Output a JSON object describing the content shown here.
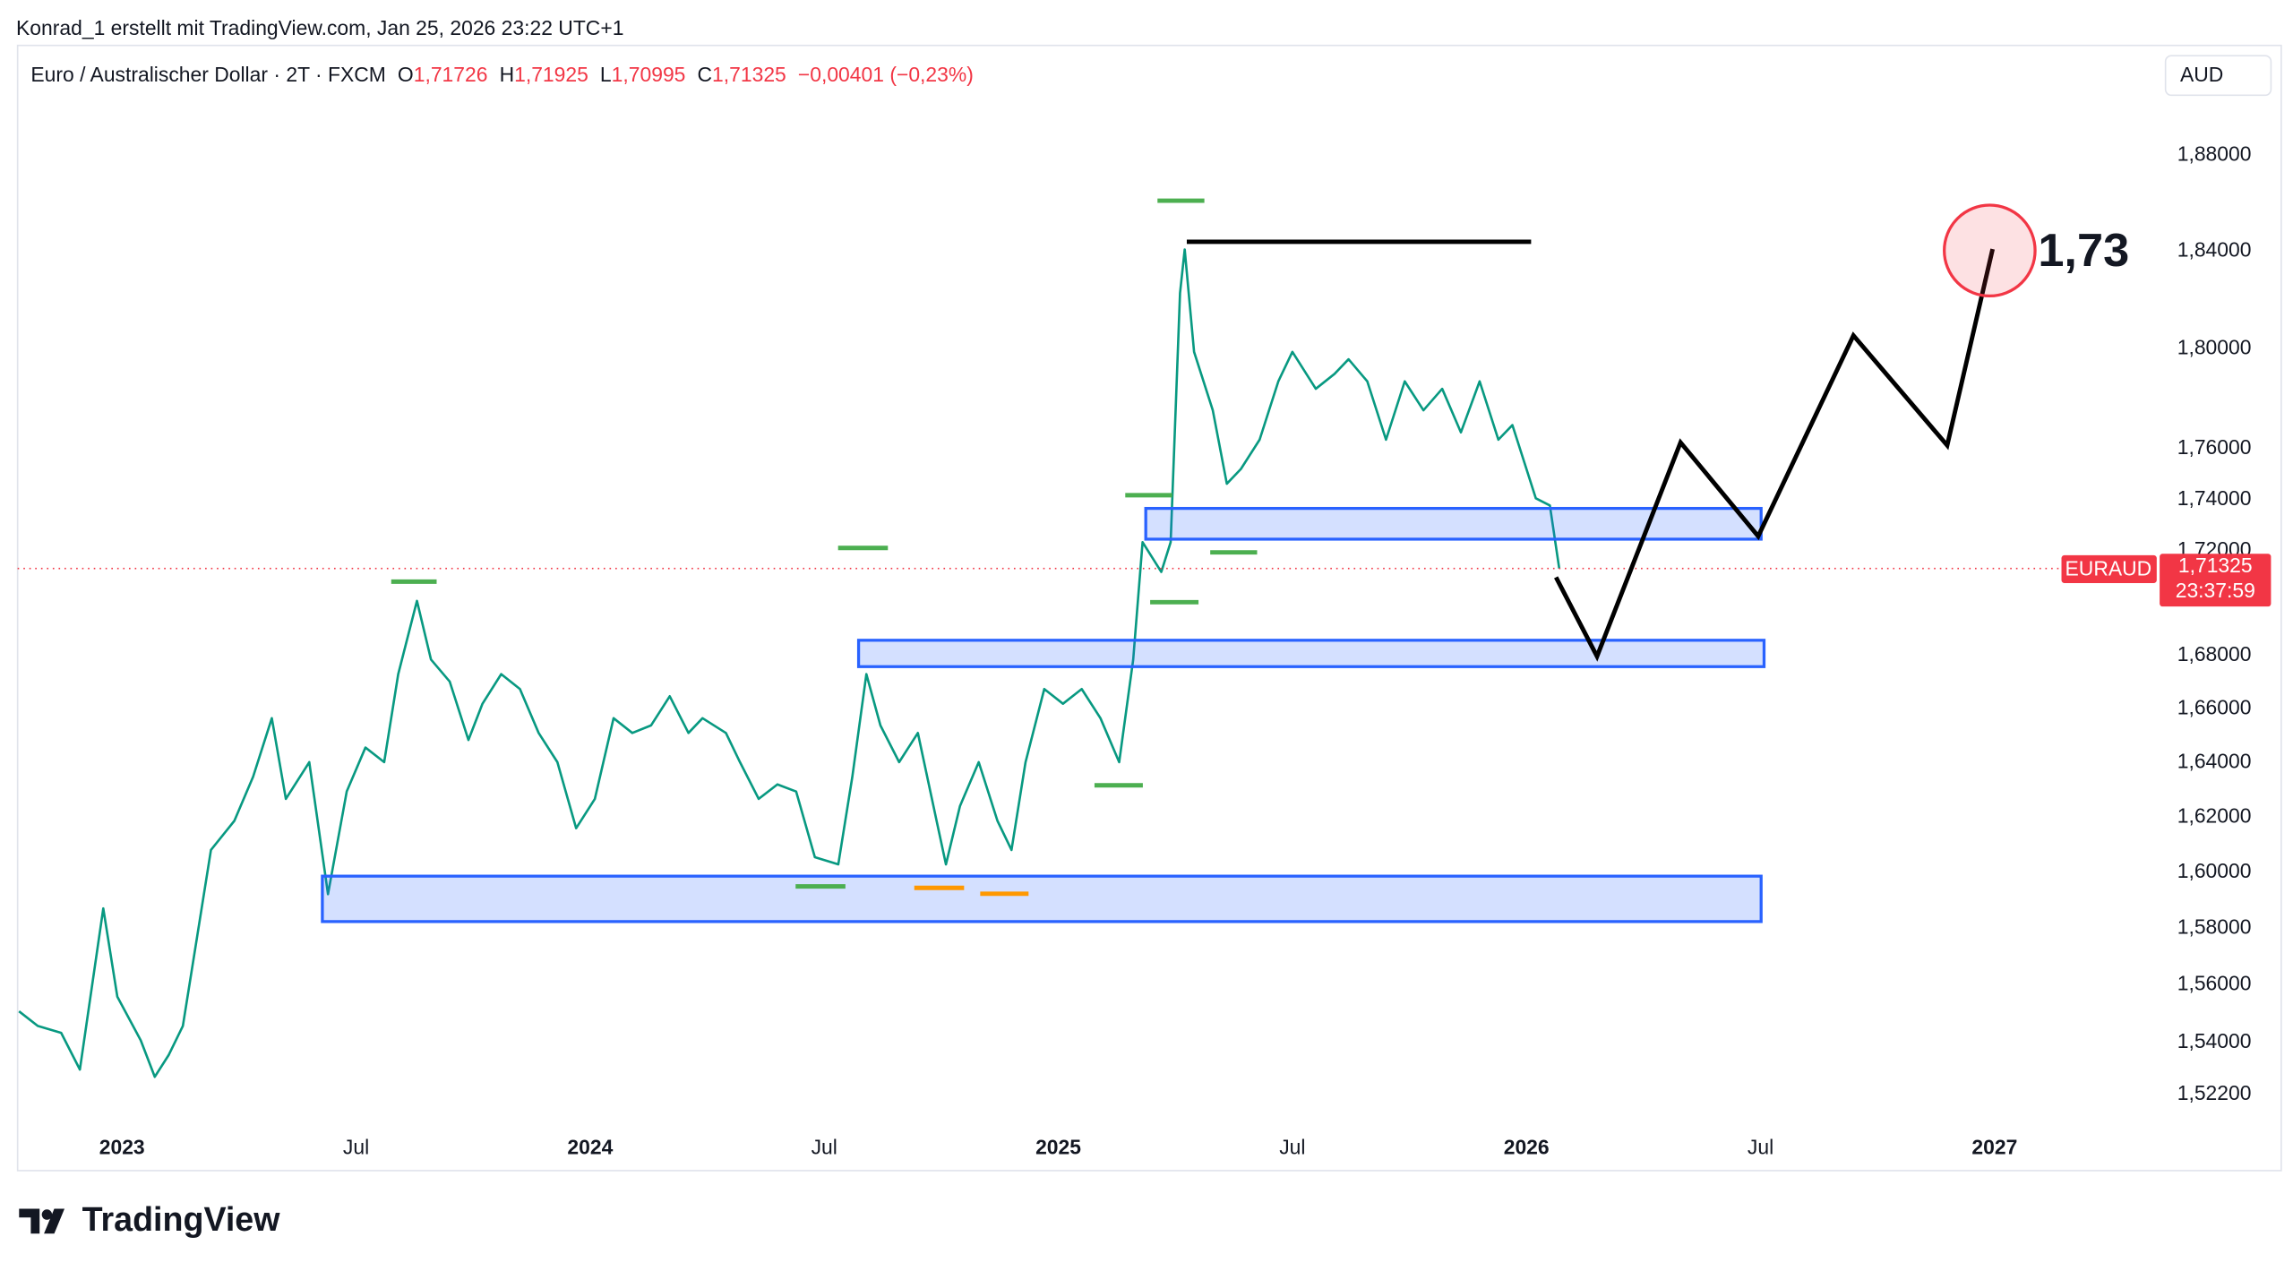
{
  "header": {
    "author_line": "Konrad_1 erstellt mit TradingView.com, Jan 25, 2026 23:22 UTC+1"
  },
  "chart_data": {
    "type": "line",
    "legend": {
      "symbol": "Euro / Australischer Dollar · 2T · FXCM",
      "ohlc": [
        {
          "key": "O",
          "value": "1,71726"
        },
        {
          "key": "H",
          "value": "1,71925"
        },
        {
          "key": "L",
          "value": "1,70995"
        },
        {
          "key": "C",
          "value": "1,71325"
        }
      ],
      "change": "−0,00401 (−0,23%)"
    },
    "currency": "AUD",
    "price_tag": {
      "symbol": "EURAUD",
      "price": "1,71325",
      "countdown": "23:37:59"
    },
    "annotation": "1,73",
    "log_scale": true,
    "grid": false,
    "x": [
      2022.78,
      2022.82,
      2022.87,
      2022.91,
      2022.96,
      2022.99,
      2023.04,
      2023.07,
      2023.1,
      2023.13,
      2023.16,
      2023.19,
      2023.24,
      2023.28,
      2023.32,
      2023.35,
      2023.4,
      2023.44,
      2023.48,
      2023.52,
      2023.56,
      2023.59,
      2023.63,
      2023.66,
      2023.7,
      2023.74,
      2023.77,
      2023.81,
      2023.85,
      2023.89,
      2023.93,
      2023.97,
      2024.01,
      2024.05,
      2024.09,
      2024.13,
      2024.17,
      2024.21,
      2024.24,
      2024.29,
      2024.32,
      2024.36,
      2024.4,
      2024.44,
      2024.48,
      2024.53,
      2024.56,
      2024.59,
      2024.62,
      2024.66,
      2024.7,
      2024.74,
      2024.76,
      2024.79,
      2024.83,
      2024.87,
      2024.9,
      2024.93,
      2024.97,
      2025.01,
      2025.05,
      2025.09,
      2025.13,
      2025.16,
      2025.18,
      2025.22,
      2025.24,
      2025.26,
      2025.27,
      2025.29,
      2025.33,
      2025.36,
      2025.39,
      2025.43,
      2025.47,
      2025.5,
      2025.55,
      2025.59,
      2025.62,
      2025.66,
      2025.7,
      2025.74,
      2025.78,
      2025.82,
      2025.86,
      2025.9,
      2025.94,
      2025.97,
      2026.02,
      2026.05,
      2026.07
    ],
    "series": [
      {
        "color": "#089981",
        "values": [
          1.5508,
          1.5457,
          1.5433,
          1.5306,
          1.5871,
          1.5559,
          1.5407,
          1.5281,
          1.5357,
          1.5457,
          1.5766,
          1.6081,
          1.6187,
          1.6348,
          1.6565,
          1.6267,
          1.6402,
          1.5922,
          1.6294,
          1.6456,
          1.6402,
          1.673,
          1.7008,
          1.6785,
          1.6702,
          1.6484,
          1.6619,
          1.673,
          1.6674,
          1.651,
          1.6402,
          1.616,
          1.6267,
          1.6565,
          1.651,
          1.6538,
          1.6647,
          1.651,
          1.6565,
          1.651,
          1.6402,
          1.6267,
          1.632,
          1.6294,
          1.6055,
          1.6029,
          1.6348,
          1.673,
          1.6538,
          1.6402,
          1.651,
          1.6187,
          1.6029,
          1.6241,
          1.6402,
          1.6187,
          1.6081,
          1.6402,
          1.6674,
          1.6619,
          1.6674,
          1.6565,
          1.6402,
          1.6785,
          1.7234,
          1.7119,
          1.7234,
          1.8227,
          1.8407,
          1.7988,
          1.7753,
          1.7462,
          1.752,
          1.7636,
          1.7869,
          1.7988,
          1.7839,
          1.7899,
          1.7958,
          1.7869,
          1.7636,
          1.7869,
          1.7753,
          1.7839,
          1.7665,
          1.7869,
          1.7636,
          1.7694,
          1.7405,
          1.7377,
          1.71325
        ]
      }
    ],
    "xlim": [
      2022.777,
      2027.34
    ],
    "xticks": [
      2023,
      {
        "value": 2023.5,
        "label": "Jul"
      },
      2024,
      {
        "value": 2024.5,
        "label": "Jul"
      },
      2025,
      {
        "value": 2025.5,
        "label": "Jul"
      },
      2026,
      {
        "value": 2026.5,
        "label": "Jul"
      },
      2027
    ],
    "ylim": [
      1.4957,
      1.9278
    ],
    "yticks": [
      {
        "value": 1.88,
        "label": "1,88000"
      },
      {
        "value": 1.84,
        "label": "1,84000"
      },
      {
        "value": 1.8,
        "label": "1,80000"
      },
      {
        "value": 1.76,
        "label": "1,76000"
      },
      {
        "value": 1.74,
        "label": "1,74000"
      },
      {
        "value": 1.72,
        "label": "1,72000"
      },
      {
        "value": 1.68,
        "label": "1,68000"
      },
      {
        "value": 1.66,
        "label": "1,66000"
      },
      {
        "value": 1.64,
        "label": "1,64000"
      },
      {
        "value": 1.62,
        "label": "1,62000"
      },
      {
        "value": 1.6,
        "label": "1,60000"
      },
      {
        "value": 1.58,
        "label": "1,58000"
      },
      {
        "value": 1.56,
        "label": "1,56000"
      },
      {
        "value": 1.54,
        "label": "1,54000"
      },
      {
        "value": 1.522,
        "label": "1,52200"
      }
    ]
  },
  "footer": {
    "brand": "TradingView"
  }
}
